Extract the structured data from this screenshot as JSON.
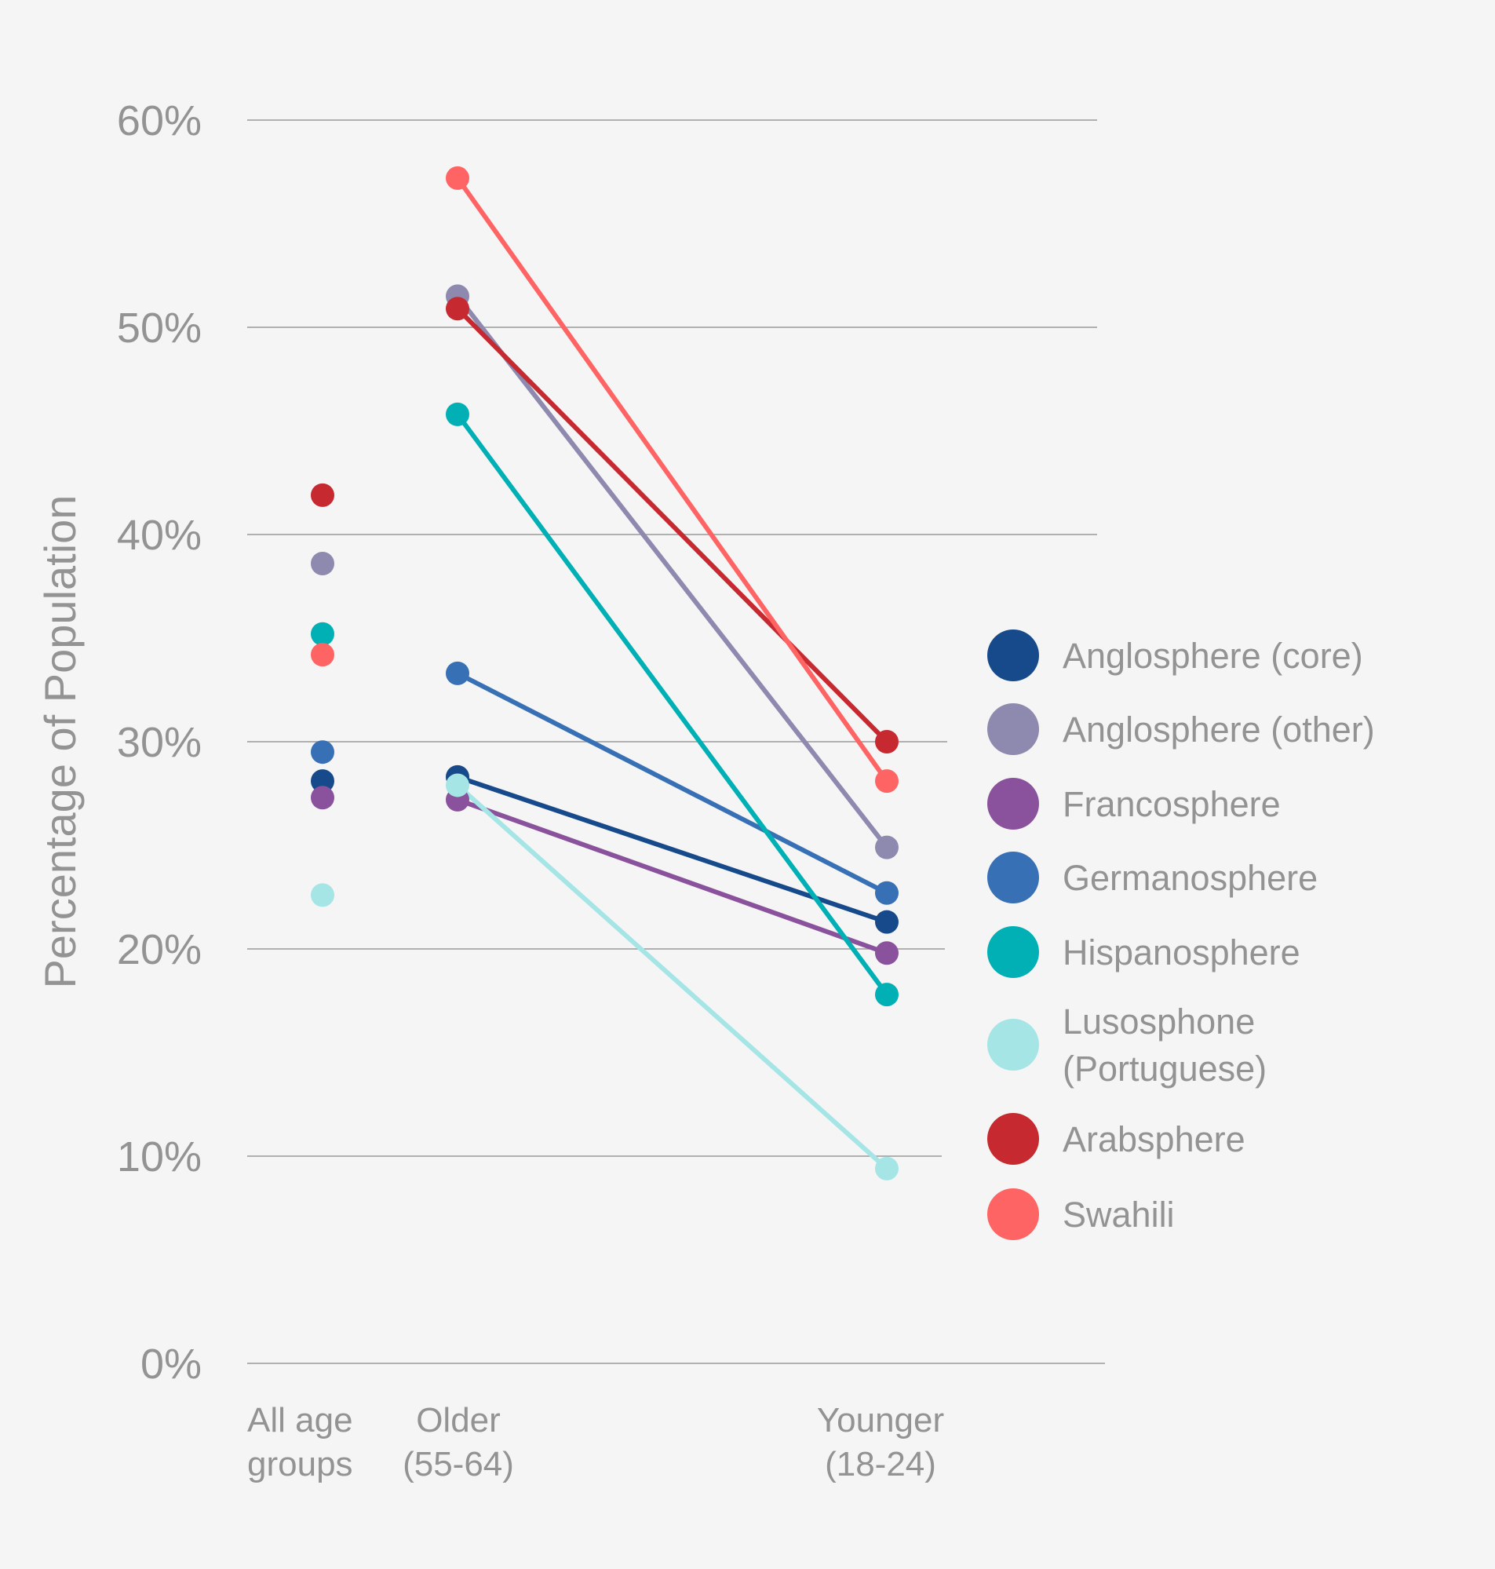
{
  "chart_data": {
    "type": "line",
    "title": "",
    "xlabel": "",
    "ylabel": "Percentage of Population",
    "ylim": [
      0,
      60
    ],
    "yticks": [
      0,
      10,
      20,
      30,
      40,
      50,
      60
    ],
    "ytick_labels": [
      "0%",
      "10%",
      "20%",
      "30%",
      "40%",
      "50%",
      "60%"
    ],
    "grid": true,
    "legend_position": "right",
    "categories": [
      {
        "key": "all",
        "lines": [
          "All age",
          "groups"
        ]
      },
      {
        "key": "older",
        "lines": [
          "Older",
          "(55-64)"
        ]
      },
      {
        "key": "younger",
        "lines": [
          "Younger",
          "(18-24)"
        ]
      }
    ],
    "note": "All age groups shown as standalone points; Older and Younger connected by a line for each series",
    "series": [
      {
        "name": "Anglosphere (core)",
        "legend_lines": [
          "Anglosphere (core)"
        ],
        "color": "#174a8b",
        "values": {
          "all": 28.1,
          "older": 28.3,
          "younger": 21.3
        }
      },
      {
        "name": "Anglosphere (other)",
        "legend_lines": [
          "Anglosphere (other)"
        ],
        "color": "#8e89ae",
        "values": {
          "all": 38.6,
          "older": 51.5,
          "younger": 24.9
        }
      },
      {
        "name": "Francosphere",
        "legend_lines": [
          "Francosphere"
        ],
        "color": "#8a529c",
        "values": {
          "all": 27.3,
          "older": 27.2,
          "younger": 19.8
        }
      },
      {
        "name": "Germanosphere",
        "legend_lines": [
          "Germanosphere"
        ],
        "color": "#3870b5",
        "values": {
          "all": 29.5,
          "older": 33.3,
          "younger": 22.7
        }
      },
      {
        "name": "Hispanosphere",
        "legend_lines": [
          "Hispanosphere"
        ],
        "color": "#01b0b5",
        "values": {
          "all": 35.2,
          "older": 45.8,
          "younger": 17.8
        }
      },
      {
        "name": "Lusosphone (Portuguese)",
        "legend_lines": [
          "Lusosphone",
          "(Portuguese)"
        ],
        "color": "#a5e5e6",
        "values": {
          "all": 22.6,
          "older": 27.9,
          "younger": 9.4
        }
      },
      {
        "name": "Arabsphere",
        "legend_lines": [
          "Arabsphere"
        ],
        "color": "#c62a30",
        "values": {
          "all": 41.9,
          "older": 50.9,
          "younger": 30.0
        }
      },
      {
        "name": "Swahili",
        "legend_lines": [
          "Swahili"
        ],
        "color": "#ff6464",
        "values": {
          "all": 34.2,
          "older": 57.2,
          "younger": 28.1
        }
      }
    ]
  },
  "colors": {
    "background": "#f5f5f5",
    "text": "#939393",
    "gridline": "#9a9a9a"
  }
}
